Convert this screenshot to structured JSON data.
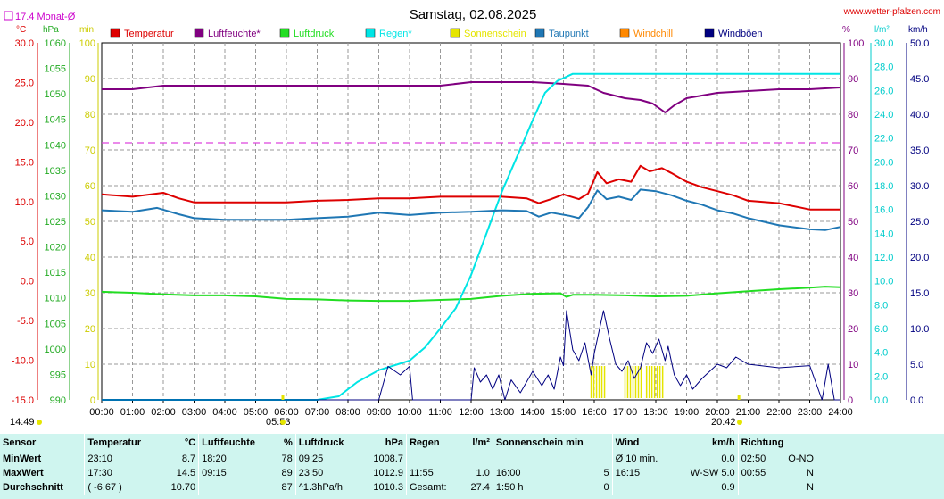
{
  "header": {
    "title": "Samstag, 02.08.2025",
    "site": "www.wetter-pfalzen.com",
    "month_avg_label": "17.4 Monat-Ø"
  },
  "units": {
    "temp": "°C",
    "pressure": "hPa",
    "minutes": "min",
    "percent": "%",
    "rain": "l/m²",
    "wind": "km/h"
  },
  "legend": [
    {
      "label": "Temperatur",
      "color": "#dd0000"
    },
    {
      "label": "Luftfeuchte*",
      "color": "#800080"
    },
    {
      "label": "Luftdruck",
      "color": "#22dd22"
    },
    {
      "label": "Regen*",
      "color": "#00e5e5"
    },
    {
      "label": "Sonnenschein",
      "color": "#e5e500"
    },
    {
      "label": "Taupunkt",
      "color": "#1f77b4"
    },
    {
      "label": "Windchill",
      "color": "#ff8800"
    },
    {
      "label": "Windböen",
      "color": "#000080"
    }
  ],
  "axes": {
    "temp_ticks": [
      "30.0",
      "25.0",
      "20.0",
      "15.0",
      "10.0",
      "5.0",
      "0.0",
      "-5.0",
      "-10.0",
      "-15.0"
    ],
    "pressure_ticks": [
      "1060",
      "1055",
      "1050",
      "1045",
      "1040",
      "1035",
      "1030",
      "1025",
      "1020",
      "1015",
      "1010",
      "1005",
      "1000",
      "995",
      "990"
    ],
    "minutes_ticks": [
      "100",
      "90",
      "80",
      "70",
      "60",
      "50",
      "40",
      "30",
      "20",
      "10",
      "0"
    ],
    "humidity_ticks": [
      "100",
      "90",
      "80",
      "70",
      "60",
      "50",
      "40",
      "30",
      "20",
      "10",
      "0"
    ],
    "rain_ticks": [
      "30.0",
      "28.0",
      "26.0",
      "24.0",
      "22.0",
      "20.0",
      "18.0",
      "16.0",
      "14.0",
      "12.0",
      "10.0",
      "8.0",
      "6.0",
      "4.0",
      "2.0",
      "0.0"
    ],
    "wind_ticks": [
      "50.0",
      "45.0",
      "40.0",
      "35.0",
      "30.0",
      "25.0",
      "20.0",
      "15.0",
      "10.0",
      "5.0",
      "0.0"
    ],
    "x_ticks": [
      "00:00",
      "01:00",
      "02:00",
      "03:00",
      "04:00",
      "05:00",
      "06:00",
      "07:00",
      "08:00",
      "09:00",
      "10:00",
      "11:00",
      "12:00",
      "13:00",
      "14:00",
      "15:00",
      "16:00",
      "17:00",
      "18:00",
      "19:00",
      "20:00",
      "21:00",
      "22:00",
      "23:00",
      "24:00"
    ]
  },
  "sun": {
    "sunrise_time": "05:53",
    "sunset_time": "20:42",
    "day_length": "14:49"
  },
  "chart_data": {
    "type": "line",
    "x_unit": "hours",
    "xlim": [
      0,
      24
    ],
    "month_avg_temp": 17.4,
    "series": [
      {
        "name": "Temperatur",
        "unit": "°C",
        "ylim": [
          -15,
          30
        ],
        "points": [
          [
            0,
            10.9
          ],
          [
            1,
            10.6
          ],
          [
            2,
            11.1
          ],
          [
            2.5,
            10.4
          ],
          [
            3,
            9.9
          ],
          [
            4,
            9.9
          ],
          [
            5,
            9.9
          ],
          [
            6,
            9.9
          ],
          [
            7,
            10.1
          ],
          [
            8,
            10.2
          ],
          [
            9,
            10.4
          ],
          [
            10,
            10.4
          ],
          [
            11,
            10.6
          ],
          [
            12,
            10.6
          ],
          [
            13,
            10.6
          ],
          [
            13.8,
            10.4
          ],
          [
            14.2,
            9.8
          ],
          [
            14.6,
            10.3
          ],
          [
            15,
            10.9
          ],
          [
            15.5,
            10.3
          ],
          [
            15.8,
            11.0
          ],
          [
            16.1,
            13.7
          ],
          [
            16.4,
            12.3
          ],
          [
            16.8,
            12.8
          ],
          [
            17.2,
            12.5
          ],
          [
            17.5,
            14.5
          ],
          [
            17.8,
            13.8
          ],
          [
            18.2,
            14.2
          ],
          [
            18.5,
            13.6
          ],
          [
            19,
            12.5
          ],
          [
            19.5,
            11.8
          ],
          [
            20,
            11.3
          ],
          [
            20.5,
            10.8
          ],
          [
            21,
            10.1
          ],
          [
            22,
            9.8
          ],
          [
            23,
            9.0
          ],
          [
            24,
            9.0
          ]
        ]
      },
      {
        "name": "Luftfeuchte*",
        "unit": "%",
        "ylim": [
          0,
          100
        ],
        "points": [
          [
            0,
            87
          ],
          [
            1,
            87
          ],
          [
            2,
            88
          ],
          [
            3,
            88
          ],
          [
            4,
            88
          ],
          [
            5,
            88
          ],
          [
            6,
            88
          ],
          [
            7,
            88
          ],
          [
            8,
            88
          ],
          [
            9,
            88
          ],
          [
            10,
            88
          ],
          [
            11,
            88
          ],
          [
            12,
            89
          ],
          [
            13,
            89
          ],
          [
            14,
            89
          ],
          [
            15,
            88.5
          ],
          [
            15.8,
            88
          ],
          [
            16.3,
            86
          ],
          [
            17,
            84.5
          ],
          [
            17.5,
            84
          ],
          [
            17.9,
            83
          ],
          [
            18.3,
            80.5
          ],
          [
            18.6,
            82.5
          ],
          [
            19,
            84.5
          ],
          [
            20,
            86
          ],
          [
            21,
            86.5
          ],
          [
            22,
            87
          ],
          [
            23,
            87
          ],
          [
            24,
            87.5
          ]
        ]
      },
      {
        "name": "Luftdruck",
        "unit": "hPa",
        "ylim": [
          990,
          1060
        ],
        "points": [
          [
            0,
            1011.2
          ],
          [
            1,
            1011.0
          ],
          [
            2,
            1010.7
          ],
          [
            3,
            1010.5
          ],
          [
            4,
            1010.5
          ],
          [
            5,
            1010.3
          ],
          [
            6,
            1009.8
          ],
          [
            7,
            1009.7
          ],
          [
            8,
            1009.5
          ],
          [
            9,
            1009.4
          ],
          [
            10,
            1009.4
          ],
          [
            11,
            1009.6
          ],
          [
            12,
            1009.8
          ],
          [
            13,
            1010.4
          ],
          [
            14,
            1010.8
          ],
          [
            14.9,
            1010.9
          ],
          [
            15.1,
            1010.2
          ],
          [
            15.3,
            1010.6
          ],
          [
            16,
            1010.6
          ],
          [
            17,
            1010.5
          ],
          [
            18,
            1010.3
          ],
          [
            19,
            1010.4
          ],
          [
            20,
            1010.9
          ],
          [
            21,
            1011.3
          ],
          [
            22,
            1011.7
          ],
          [
            23,
            1012.0
          ],
          [
            23.5,
            1012.2
          ],
          [
            24,
            1012.1
          ]
        ]
      },
      {
        "name": "Regen*",
        "unit": "l/m²",
        "ylim": [
          0,
          30
        ],
        "points": [
          [
            0,
            0
          ],
          [
            7,
            0
          ],
          [
            7.7,
            0.3
          ],
          [
            8.3,
            1.5
          ],
          [
            9,
            2.5
          ],
          [
            10,
            3.3
          ],
          [
            10.5,
            4.4
          ],
          [
            11,
            6.0
          ],
          [
            11.5,
            7.7
          ],
          [
            12,
            10.5
          ],
          [
            12.5,
            14.0
          ],
          [
            13,
            17.5
          ],
          [
            13.5,
            20.5
          ],
          [
            14,
            23.5
          ],
          [
            14.4,
            25.8
          ],
          [
            14.8,
            26.8
          ],
          [
            15.3,
            27.4
          ],
          [
            16,
            27.4
          ],
          [
            20,
            27.4
          ],
          [
            24,
            27.4
          ]
        ]
      },
      {
        "name": "Taupunkt",
        "unit": "°C",
        "ylim": [
          -15,
          30
        ],
        "points": [
          [
            0,
            8.9
          ],
          [
            1,
            8.7
          ],
          [
            1.8,
            9.2
          ],
          [
            2.5,
            8.4
          ],
          [
            3,
            7.9
          ],
          [
            4,
            7.7
          ],
          [
            5,
            7.7
          ],
          [
            6,
            7.7
          ],
          [
            7,
            7.9
          ],
          [
            8,
            8.1
          ],
          [
            9,
            8.6
          ],
          [
            10,
            8.3
          ],
          [
            11,
            8.6
          ],
          [
            12,
            8.7
          ],
          [
            13,
            8.9
          ],
          [
            13.8,
            8.8
          ],
          [
            14.2,
            8.1
          ],
          [
            14.6,
            8.6
          ],
          [
            15.2,
            8.2
          ],
          [
            15.5,
            7.9
          ],
          [
            15.8,
            9.3
          ],
          [
            16.1,
            11.4
          ],
          [
            16.4,
            10.3
          ],
          [
            16.8,
            10.6
          ],
          [
            17.2,
            10.2
          ],
          [
            17.5,
            11.5
          ],
          [
            18,
            11.3
          ],
          [
            18.5,
            10.8
          ],
          [
            19,
            10.1
          ],
          [
            19.5,
            9.6
          ],
          [
            20,
            8.9
          ],
          [
            20.5,
            8.5
          ],
          [
            21,
            7.9
          ],
          [
            22,
            7.0
          ],
          [
            23,
            6.5
          ],
          [
            23.5,
            6.4
          ],
          [
            24,
            6.8
          ]
        ]
      },
      {
        "name": "Windböen",
        "unit": "km/h",
        "ylim": [
          0,
          50
        ],
        "points": [
          [
            0,
            0
          ],
          [
            9,
            0
          ],
          [
            9.3,
            4.7
          ],
          [
            9.7,
            3.5
          ],
          [
            10,
            4.7
          ],
          [
            10.1,
            0
          ],
          [
            12,
            0
          ],
          [
            12.1,
            4.5
          ],
          [
            12.3,
            2.5
          ],
          [
            12.5,
            3.5
          ],
          [
            12.7,
            1.5
          ],
          [
            12.9,
            3.5
          ],
          [
            13.1,
            0
          ],
          [
            13.3,
            2.8
          ],
          [
            13.6,
            1.0
          ],
          [
            14,
            4.0
          ],
          [
            14.3,
            2.0
          ],
          [
            14.5,
            3.5
          ],
          [
            14.7,
            1.5
          ],
          [
            14.9,
            6.0
          ],
          [
            15,
            4.8
          ],
          [
            15.1,
            12.5
          ],
          [
            15.3,
            7.0
          ],
          [
            15.5,
            5.5
          ],
          [
            15.7,
            8.0
          ],
          [
            15.9,
            3.5
          ],
          [
            16,
            6.5
          ],
          [
            16.2,
            10.5
          ],
          [
            16.3,
            12.5
          ],
          [
            16.5,
            8.5
          ],
          [
            16.7,
            5.0
          ],
          [
            16.9,
            4.0
          ],
          [
            17.1,
            5.5
          ],
          [
            17.3,
            3.0
          ],
          [
            17.5,
            4.5
          ],
          [
            17.7,
            8.0
          ],
          [
            17.9,
            6.5
          ],
          [
            18.1,
            8.5
          ],
          [
            18.3,
            5.5
          ],
          [
            18.4,
            7.5
          ],
          [
            18.6,
            3.5
          ],
          [
            18.8,
            2.0
          ],
          [
            19,
            3.5
          ],
          [
            19.2,
            1.5
          ],
          [
            19.5,
            3.0
          ],
          [
            20,
            5.0
          ],
          [
            20.3,
            4.5
          ],
          [
            20.6,
            6.0
          ],
          [
            21,
            5.0
          ],
          [
            22,
            4.5
          ],
          [
            23,
            4.8
          ],
          [
            23.4,
            0
          ],
          [
            23.6,
            5.0
          ],
          [
            23.8,
            0
          ],
          [
            24,
            0
          ]
        ]
      }
    ],
    "sunshine_blocks": [
      [
        15.9,
        16.4,
        10
      ],
      [
        17.0,
        17.6,
        10
      ],
      [
        17.7,
        18.3,
        10
      ]
    ]
  },
  "summary": {
    "headers": [
      {
        "name": "Sensor",
        "unit": ""
      },
      {
        "name": "Temperatur",
        "unit": "°C"
      },
      {
        "name": "Luftfeuchte",
        "unit": "%"
      },
      {
        "name": "Luftdruck",
        "unit": "hPa"
      },
      {
        "name": "Regen",
        "unit": "l/m²"
      },
      {
        "name": "Sonnenschein min",
        "unit": ""
      },
      {
        "name": "Wind",
        "unit": "km/h"
      },
      {
        "name": "Richtung",
        "unit": ""
      }
    ],
    "rows": [
      {
        "label": "MinWert",
        "temp_time": "23:10",
        "temp_val": "8.7",
        "hum_time": "18:20",
        "hum_val": "78",
        "press_time": "09:25",
        "press_val": "1008.7",
        "rain_time": "",
        "rain_val": "",
        "sun_time": "",
        "sun_val": "",
        "wind_time": "Ø 10 min.",
        "wind_val": "0.0",
        "dir_time": "02:50",
        "dir_val": "O-NO"
      },
      {
        "label": "MaxWert",
        "temp_time": "17:30",
        "temp_val": "14.5",
        "hum_time": "09:15",
        "hum_val": "89",
        "press_time": "23:50",
        "press_val": "1012.9",
        "rain_time": "11:55",
        "rain_val": "1.0",
        "sun_time": "16:00",
        "sun_val": "5",
        "wind_time": "16:15",
        "wind_val": "W-SW 5.0",
        "dir_time": "00:55",
        "dir_val": "N"
      },
      {
        "label": "Durchschnitt",
        "temp_time": "( -6.67 )",
        "temp_val": "10.70",
        "hum_time": "",
        "hum_val": "87",
        "press_time": "^1.3hPa/h",
        "press_val": "1010.3",
        "rain_time": "Gesamt:",
        "rain_val": "27.4",
        "sun_time": "1:50 h",
        "sun_val": "0",
        "wind_time": "",
        "wind_val": "0.9",
        "dir_time": "",
        "dir_val": "N"
      }
    ]
  }
}
